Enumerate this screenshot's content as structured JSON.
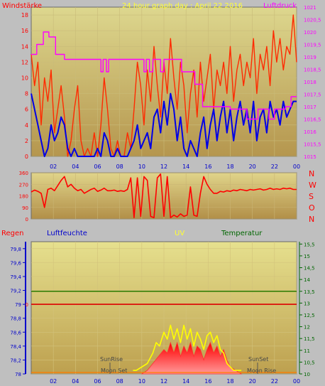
{
  "chart_data": [
    {
      "type": "line",
      "title": "24 hour graph day : April 22 2016",
      "left_label": "Windstärke",
      "right_label": "Luftdruck",
      "x_ticks": [
        "02",
        "04",
        "06",
        "08",
        "10",
        "12",
        "14",
        "16",
        "18",
        "20",
        "22",
        "00"
      ],
      "y_left_ticks": [
        "0",
        "2",
        "4",
        "6",
        "8",
        "10",
        "12",
        "14",
        "16",
        "18"
      ],
      "y_left_range": [
        0,
        19
      ],
      "y_right_ticks": [
        "1015",
        "1015,5",
        "1016",
        "1016,5",
        "1017",
        "1017,5",
        "1018",
        "1018,5",
        "1019",
        "1019,5",
        "1020",
        "1020,5",
        "1021"
      ],
      "y_right_range": [
        1015,
        1021
      ],
      "series": [
        {
          "color": "#ff2a00",
          "axis": "left",
          "x": [
            0,
            0.3,
            0.6,
            0.9,
            1.2,
            1.5,
            1.8,
            2.1,
            2.4,
            2.7,
            3,
            3.3,
            3.6,
            3.9,
            4.2,
            4.5,
            4.8,
            5.1,
            5.4,
            5.7,
            6,
            6.3,
            6.6,
            6.9,
            7.2,
            7.5,
            7.8,
            8.1,
            8.4,
            8.7,
            9,
            9.3,
            9.6,
            9.9,
            10.2,
            10.5,
            10.8,
            11.1,
            11.4,
            11.7,
            12,
            12.3,
            12.6,
            12.9,
            13.2,
            13.5,
            13.8,
            14.1,
            14.4,
            14.7,
            15,
            15.3,
            15.6,
            15.9,
            16.2,
            16.5,
            16.8,
            17.1,
            17.4,
            17.7,
            18,
            18.3,
            18.6,
            18.9,
            19.2,
            19.5,
            19.8,
            20.1,
            20.4,
            20.7,
            21,
            21.3,
            21.6,
            21.9,
            22.2,
            22.5,
            22.8,
            23.1,
            23.4,
            23.7,
            24
          ],
          "values": [
            13,
            9,
            12,
            4,
            10,
            7,
            11,
            3,
            6,
            9,
            5,
            0,
            2,
            6,
            9,
            2,
            0,
            1,
            0,
            3,
            0,
            4,
            10,
            6,
            1,
            0,
            2,
            0,
            0,
            3,
            1,
            6,
            12,
            9,
            4,
            11,
            7,
            14,
            9,
            5,
            12,
            8,
            15,
            10,
            6,
            12,
            9,
            3,
            8,
            11,
            5,
            12,
            7,
            10,
            13,
            6,
            11,
            9,
            12,
            8,
            14,
            7,
            11,
            13,
            9,
            12,
            10,
            15,
            8,
            13,
            11,
            14,
            9,
            16,
            12,
            15,
            11,
            14,
            13,
            18,
            12
          ]
        },
        {
          "color": "#0000e6",
          "axis": "left",
          "x": [
            0,
            0.3,
            0.6,
            0.9,
            1.2,
            1.5,
            1.8,
            2.1,
            2.4,
            2.7,
            3,
            3.3,
            3.6,
            3.9,
            4.2,
            4.5,
            4.8,
            5.1,
            5.4,
            5.7,
            6,
            6.3,
            6.6,
            6.9,
            7.2,
            7.5,
            7.8,
            8.1,
            8.4,
            8.7,
            9,
            9.3,
            9.6,
            9.9,
            10.2,
            10.5,
            10.8,
            11.1,
            11.4,
            11.7,
            12,
            12.3,
            12.6,
            12.9,
            13.2,
            13.5,
            13.8,
            14.1,
            14.4,
            14.7,
            15,
            15.3,
            15.6,
            15.9,
            16.2,
            16.5,
            16.8,
            17.1,
            17.4,
            17.7,
            18,
            18.3,
            18.6,
            18.9,
            19.2,
            19.5,
            19.8,
            20.1,
            20.4,
            20.7,
            21,
            21.3,
            21.6,
            21.9,
            22.2,
            22.5,
            22.8,
            23.1,
            23.4,
            23.7,
            24
          ],
          "values": [
            8,
            6,
            4,
            2,
            0,
            1,
            4,
            2,
            3,
            5,
            4,
            1,
            0,
            1,
            0,
            0,
            0,
            0,
            0,
            0,
            1,
            0,
            3,
            2,
            0,
            0,
            1,
            0,
            0,
            0,
            1,
            2,
            4,
            1,
            2,
            3,
            1,
            5,
            6,
            3,
            7,
            4,
            8,
            6,
            2,
            5,
            1,
            0,
            2,
            1,
            0,
            3,
            5,
            1,
            4,
            6,
            2,
            5,
            7,
            3,
            6,
            2,
            5,
            7,
            4,
            6,
            3,
            7,
            2,
            5,
            6,
            3,
            7,
            5,
            6,
            4,
            7,
            5,
            6,
            7,
            7
          ]
        },
        {
          "color": "#ff00ff",
          "axis": "right",
          "x": [
            0,
            0.2,
            0.5,
            0.8,
            1.1,
            1.4,
            1.6,
            2.0,
            2.2,
            2.6,
            3,
            3.5,
            4,
            5,
            6,
            6.3,
            6.5,
            6.8,
            7.0,
            7.4,
            8,
            9,
            10,
            10.2,
            10.4,
            10.7,
            11,
            11.4,
            11.7,
            12,
            12.4,
            12.8,
            13.3,
            13.6,
            13.9,
            14.3,
            14.8,
            15.2,
            15.5,
            16,
            17,
            18,
            19,
            19.5,
            20,
            20.5,
            21,
            21.5,
            22,
            22.5,
            23,
            23.5,
            24
          ],
          "values": [
            1019.1,
            1019.1,
            1019.5,
            1019.5,
            1020,
            1020,
            1019.8,
            1019.8,
            1019.1,
            1019.1,
            1018.9,
            1018.9,
            1018.9,
            1018.9,
            1018.9,
            1018.4,
            1018.9,
            1018.4,
            1018.9,
            1018.9,
            1018.9,
            1018.9,
            1018.9,
            1018.4,
            1018.9,
            1018.4,
            1018.9,
            1018.9,
            1018.4,
            1018.9,
            1018.9,
            1018.9,
            1018.9,
            1018.4,
            1018.4,
            1018.4,
            1017.9,
            1017.9,
            1017.0,
            1017.0,
            1017.0,
            1016.9,
            1016.9,
            1016.5,
            1016.5,
            1016.9,
            1016.9,
            1016.5,
            1016.9,
            1016.9,
            1017.0,
            1017.4,
            1017.4
          ]
        }
      ]
    },
    {
      "type": "line",
      "right_label": [
        "N",
        "W",
        "S",
        "O",
        "N"
      ],
      "y_left_ticks": [
        "0",
        "90",
        "180",
        "270",
        "360"
      ],
      "y_left_range": [
        0,
        360
      ],
      "x_ticks": [],
      "series": [
        {
          "color": "#ff0000",
          "x": [
            0,
            0.3,
            0.6,
            0.9,
            1.2,
            1.5,
            1.8,
            2.1,
            2.4,
            2.7,
            3,
            3.3,
            3.6,
            3.9,
            4.2,
            4.5,
            4.8,
            5.1,
            5.4,
            5.7,
            6,
            6.3,
            6.6,
            6.9,
            7.2,
            7.5,
            7.8,
            8.1,
            8.4,
            8.7,
            9,
            9.3,
            9.6,
            9.9,
            10.2,
            10.5,
            10.8,
            11.1,
            11.4,
            11.7,
            12,
            12.3,
            12.6,
            12.9,
            13.2,
            13.5,
            13.8,
            14.1,
            14.4,
            14.7,
            15,
            15.3,
            15.6,
            15.9,
            16.2,
            16.5,
            16.8,
            17.1,
            17.4,
            17.7,
            18,
            18.3,
            18.6,
            18.9,
            19.2,
            19.5,
            19.8,
            20.1,
            20.4,
            20.7,
            21,
            21.3,
            21.6,
            21.9,
            22.2,
            22.5,
            22.8,
            23.1,
            23.4,
            23.7,
            24
          ],
          "values": [
            210,
            225,
            215,
            200,
            90,
            230,
            240,
            220,
            260,
            300,
            330,
            250,
            270,
            240,
            220,
            230,
            200,
            215,
            230,
            240,
            215,
            225,
            240,
            220,
            220,
            225,
            215,
            220,
            215,
            230,
            320,
            10,
            320,
            20,
            330,
            300,
            20,
            10,
            320,
            350,
            20,
            330,
            10,
            30,
            15,
            40,
            20,
            30,
            250,
            30,
            20,
            200,
            330,
            270,
            230,
            200,
            200,
            215,
            210,
            220,
            215,
            225,
            220,
            230,
            225,
            220,
            230,
            225,
            230,
            235,
            225,
            230,
            240,
            230,
            235,
            230,
            240,
            235,
            240,
            230,
            230
          ]
        }
      ]
    },
    {
      "type": "area",
      "labels": {
        "rain": "Regen",
        "humidity": "Luftfeuchte",
        "uv": "UV",
        "temperature": "Temperatur"
      },
      "y_left_ticks": [
        "78",
        "78,2",
        "78,4",
        "78,6",
        "78,8",
        "79",
        "79,2",
        "79,4",
        "79,6",
        "79,8"
      ],
      "y_left_range": [
        78,
        79.9
      ],
      "rain_ticks": [
        "0"
      ],
      "y_right_ticks": [
        "10",
        "10,5",
        "11",
        "11,5",
        "12",
        "12,5",
        "13",
        "13,5",
        "14",
        "14,5",
        "15",
        "15,5"
      ],
      "y_right_range": [
        10,
        15.6
      ],
      "x_ticks": [
        "02",
        "04",
        "06",
        "08",
        "10",
        "12",
        "14",
        "16",
        "18",
        "20",
        "22",
        "00"
      ],
      "annotations": {
        "sunrise": "SunRise",
        "moonset": "Moon Set",
        "sunset": "SunSet",
        "moonrise": "Moon Rise"
      },
      "rain_line_value": 79,
      "temperature_line_value": 13.5,
      "uv_area": {
        "color": "#ff0000",
        "x": [
          10,
          10.5,
          11,
          11.5,
          12,
          12.3,
          12.6,
          12.9,
          13.2,
          13.5,
          13.8,
          14.1,
          14.4,
          14.7,
          15,
          15.3,
          15.6,
          15.9,
          16.2,
          16.5,
          16.8,
          17.1,
          17.4,
          17.7,
          18,
          18.5,
          19
        ],
        "values": [
          78,
          78.05,
          78.15,
          78.25,
          78.35,
          78.3,
          78.45,
          78.3,
          78.45,
          78.25,
          78.4,
          78.3,
          78.45,
          78.25,
          78.4,
          78.35,
          78.2,
          78.35,
          78.45,
          78.3,
          78.4,
          78.25,
          78.35,
          78.2,
          78.1,
          78.05,
          78
        ]
      },
      "uv_line": {
        "color": "#ffff00",
        "x": [
          9.2,
          9.5,
          10,
          10.5,
          11,
          11.3,
          11.6,
          12,
          12.3,
          12.6,
          12.9,
          13.2,
          13.5,
          13.8,
          14.1,
          14.4,
          14.7,
          15,
          15.3,
          15.6,
          15.9,
          16.2,
          16.5,
          16.8,
          17.1,
          17.4,
          17.7,
          18,
          18.3,
          18.6,
          19
        ],
        "values": [
          78.05,
          78.05,
          78.1,
          78.15,
          78.3,
          78.45,
          78.4,
          78.6,
          78.5,
          78.7,
          78.5,
          78.65,
          78.45,
          78.7,
          78.5,
          78.65,
          78.4,
          78.6,
          78.5,
          78.35,
          78.55,
          78.6,
          78.45,
          78.55,
          78.35,
          78.3,
          78.15,
          78.1,
          78.05,
          78.05,
          78.05
        ]
      }
    }
  ]
}
